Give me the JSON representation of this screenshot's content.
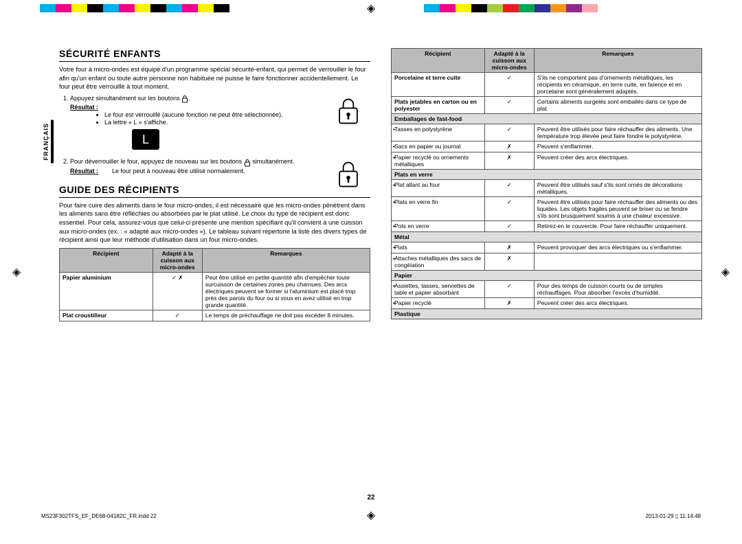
{
  "colorBars": {
    "cmyk": [
      "#00aeef",
      "#ec008c",
      "#fff200",
      "#000000",
      "#00aeef",
      "#ec008c",
      "#fff200",
      "#000000",
      "#00aeef",
      "#ec008c",
      "#fff200",
      "#000000"
    ],
    "full": [
      "#00aeef",
      "#ec008c",
      "#fff200",
      "#000000",
      "#a6ce39",
      "#ed1c24",
      "#00a651",
      "#2e3192",
      "#f7941d",
      "#92278f",
      "#f9a7b0"
    ]
  },
  "sideTab": "FRANÇAIS",
  "sec1": {
    "title": "SÉCURITÉ ENFANTS",
    "intro": "Votre four à micro-ondes est équipé d'un programme spécial sécurité-enfant, qui permet de verrouiller le four afin qu'un enfant ou toute autre personne non habituée ne puisse le faire fonctionner accidentellement. Le four peut être verrouillé à tout moment.",
    "step1": "Appuyez simultanément sur les boutons ",
    "result_label": "Résultat :",
    "step1_bul1": "Le four est verrouillé (aucune fonction ne peut être sélectionnée).",
    "step1_bul2": "La lettre « L » s'affiche.",
    "l_display": "L",
    "step2a": "Pour déverrouiller le four, appuyez de nouveau sur les boutons ",
    "step2b": " simultanément.",
    "step2_res": "Le four peut à nouveau être utilisé normalement."
  },
  "sec2": {
    "title": "GUIDE DES RÉCIPIENTS",
    "intro": "Pour faire cuire des aliments dans le four micro-ondes, il est nécessaire que les micro-ondes pénètrent dans les aliments sans être réfléchies ou absorbées par le plat utilisé. Le choix du type de récipient est donc essentiel. Pour cela, assurez-vous que celui-ci présente une mention spécifiant qu'il convient à une cuisson aux micro-ondes (ex. : « adapté aux micro-ondes »). Le tableau suivant répertorie la liste des divers types de récipient ainsi que leur méthode d'utilisation dans un four micro-ondes."
  },
  "tableHeaders": {
    "h1": "Récipient",
    "h2": "Adapté à la cuisson aux micro-ondes",
    "h3": "Remarques"
  },
  "tableLeft": [
    {
      "cat": true,
      "name": "Papier aluminium",
      "safe": "✓ ✗",
      "note": "Peut être utilisé en petite quantité afin d'empêcher toute surcuisson de certaines zones peu charnues. Des arcs électriques peuvent se former si l'aluminium est placé trop près des parois du four ou si vous en avez utilisé en trop grande quantité."
    },
    {
      "cat": true,
      "name": "Plat croustilleur",
      "safe": "✓",
      "note": "Le temps de préchauffage ne doit pas excéder 8 minutes."
    }
  ],
  "tableRight": [
    {
      "cat": true,
      "name": "Porcelaine et terre cuite",
      "safe": "✓",
      "note": "S'ils ne comportent pas d'ornements métalliques, les récipients en céramique, en terre cuite, en faïence et en porcelaine sont généralement adaptés."
    },
    {
      "cat": true,
      "name": "Plats jetables en carton ou en polyester",
      "safe": "✓",
      "note": "Certains aliments surgelés sont emballés dans ce type de plat."
    },
    {
      "cat": true,
      "name": "Emballages de fast-food",
      "safe": "",
      "note": ""
    },
    {
      "sub": true,
      "name": "Tasses en polystyrène",
      "safe": "✓",
      "note": "Peuvent être utilisés pour faire réchauffer des aliments. Une température trop élevée peut faire fondre le polystyrène."
    },
    {
      "sub": true,
      "name": "Sacs en papier ou journal",
      "safe": "✗",
      "note": "Peuvent s'enflammer."
    },
    {
      "sub": true,
      "name": "Papier recyclé ou ornements métalliques",
      "safe": "✗",
      "note": "Peuvent créer des arcs électriques."
    },
    {
      "cat": true,
      "name": "Plats en verre",
      "safe": "",
      "note": ""
    },
    {
      "sub": true,
      "name": "Plat allant au four",
      "safe": "✓",
      "note": "Peuvent être utilisés sauf s'ils sont ornés de décorations métalliques."
    },
    {
      "sub": true,
      "name": "Plats en verre fin",
      "safe": "✓",
      "note": "Peuvent être utilisés pour faire réchauffer des aliments ou des liquides. Les objets fragiles peuvent se briser ou se fendre s'ils sont brusquement soumis à une chaleur excessive."
    },
    {
      "sub": true,
      "name": "Pots en verre",
      "safe": "✓",
      "note": "Retirez-en le couvercle. Pour faire réchauffer uniquement."
    },
    {
      "cat": true,
      "name": "Métal",
      "safe": "",
      "note": ""
    },
    {
      "sub": true,
      "name": "Plats",
      "safe": "✗",
      "note": "Peuvent provoquer des arcs électriques ou s'enflammer."
    },
    {
      "sub": true,
      "name": "Attaches métalliques des sacs de congélation",
      "safe": "✗",
      "note": ""
    },
    {
      "cat": true,
      "name": "Papier",
      "safe": "",
      "note": ""
    },
    {
      "sub": true,
      "name": "Assiettes, tasses, serviettes de table et papier absorbant",
      "safe": "✓",
      "note": "Pour des temps de cuisson courts ou de simples réchauffages. Pour absorber l'excès d'humidité."
    },
    {
      "sub": true,
      "name": "Papier recyclé",
      "safe": "✗",
      "note": "Peuvent créer des arcs électriques."
    },
    {
      "cat": true,
      "name": "Plastique",
      "safe": "",
      "note": ""
    }
  ],
  "pageNumber": "22",
  "footer": {
    "left": "MS23F302TFS_EF_DE68-04182C_FR.indd   22",
    "right": "2013-01-29   ▯ 11:14:48"
  }
}
